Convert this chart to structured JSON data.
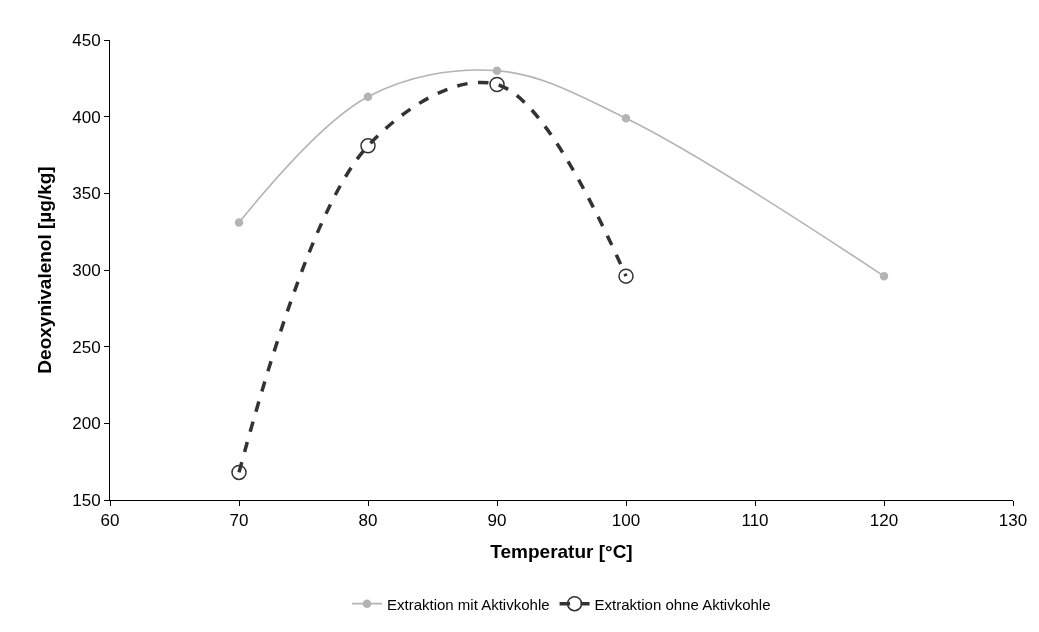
{
  "chart_data": {
    "type": "line",
    "xlabel": "Temperatur [°C]",
    "ylabel": "Deoxynivalenol [µg/kg]",
    "xlim": [
      60,
      130
    ],
    "xticks": [
      60,
      70,
      80,
      90,
      100,
      110,
      120,
      130
    ],
    "ylim": [
      150,
      450
    ],
    "yticks": [
      150,
      200,
      250,
      300,
      350,
      400,
      450
    ],
    "legend": "bottom",
    "marker": "circle",
    "series": [
      {
        "name": "Extraktion mit Aktivkohle",
        "color": "#b4b4b4",
        "x": [
          70,
          80,
          90,
          100,
          120
        ],
        "values": [
          331,
          413,
          430,
          399,
          296
        ],
        "line_style": "solid"
      },
      {
        "name": "Extraktion ohne Aktivkohle",
        "color": "#333333",
        "x": [
          70,
          80,
          90,
          100
        ],
        "values": [
          168,
          381,
          421,
          296
        ],
        "line_style": "dashed"
      }
    ]
  }
}
